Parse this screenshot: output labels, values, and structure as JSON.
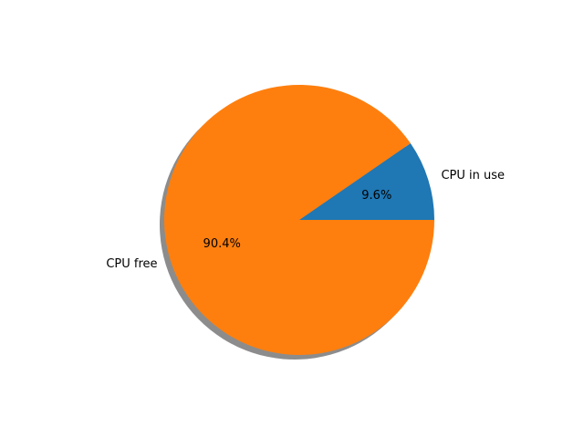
{
  "chart_data": {
    "type": "pie",
    "title": "",
    "shadow": true,
    "start_angle_deg": 0,
    "direction": "counterclockwise",
    "slices": [
      {
        "label": "CPU in use",
        "value": 9.6,
        "pct_label": "9.6%",
        "color": "#1f77b4"
      },
      {
        "label": "CPU free",
        "value": 90.4,
        "pct_label": "90.4%",
        "color": "#ff7f0e"
      }
    ]
  }
}
